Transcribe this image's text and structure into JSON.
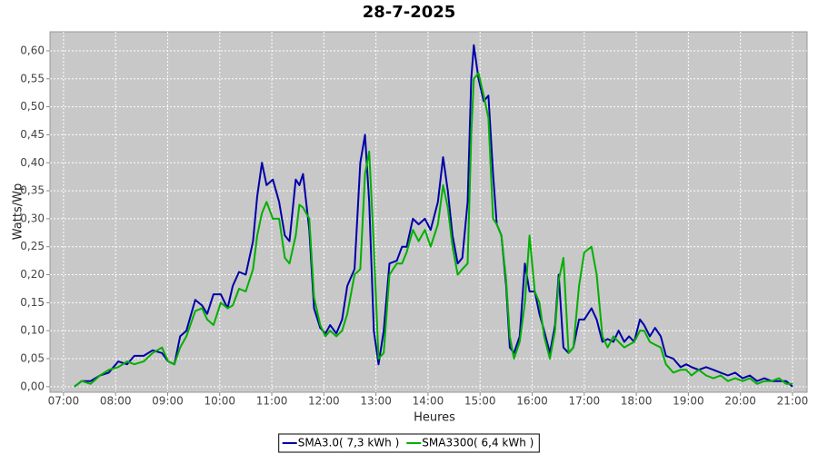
{
  "chart_data": {
    "type": "line",
    "title": "28-7-2025",
    "x_label": "Heures",
    "y_label": "Watts/Wp",
    "x": [
      7.21,
      7.35,
      7.52,
      7.7,
      7.87,
      8.05,
      8.22,
      8.36,
      8.54,
      8.71,
      8.89,
      9.01,
      9.13,
      9.24,
      9.36,
      9.53,
      9.66,
      9.76,
      9.88,
      10.02,
      10.15,
      10.25,
      10.37,
      10.5,
      10.64,
      10.72,
      10.81,
      10.9,
      11.02,
      11.14,
      11.25,
      11.34,
      11.46,
      11.53,
      11.6,
      11.72,
      11.81,
      11.93,
      12.03,
      12.12,
      12.24,
      12.35,
      12.45,
      12.59,
      12.7,
      12.79,
      12.87,
      12.96,
      13.05,
      13.15,
      13.26,
      13.4,
      13.5,
      13.59,
      13.71,
      13.82,
      13.94,
      14.05,
      14.19,
      14.29,
      14.38,
      14.47,
      14.57,
      14.66,
      14.76,
      14.83,
      14.88,
      14.97,
      15.07,
      15.16,
      15.25,
      15.32,
      15.41,
      15.5,
      15.57,
      15.65,
      15.76,
      15.86,
      15.95,
      16.05,
      16.14,
      16.23,
      16.34,
      16.44,
      16.51,
      16.6,
      16.7,
      16.79,
      16.9,
      17.0,
      17.14,
      17.24,
      17.35,
      17.45,
      17.56,
      17.66,
      17.77,
      17.86,
      17.96,
      18.07,
      18.15,
      18.26,
      18.36,
      18.47,
      18.57,
      18.71,
      18.85,
      18.96,
      19.06,
      19.2,
      19.34,
      19.48,
      19.62,
      19.76,
      19.9,
      20.04,
      20.18,
      20.32,
      20.46,
      20.6,
      20.74,
      20.88,
      21.0
    ],
    "series": [
      {
        "name": "SMA3.0( 7,3 kWh )",
        "color": "#0000a8",
        "values": [
          0,
          0.01,
          0.01,
          0.02,
          0.025,
          0.045,
          0.04,
          0.055,
          0.055,
          0.065,
          0.06,
          0.045,
          0.04,
          0.09,
          0.1,
          0.155,
          0.145,
          0.13,
          0.165,
          0.165,
          0.14,
          0.18,
          0.205,
          0.2,
          0.26,
          0.34,
          0.4,
          0.36,
          0.37,
          0.33,
          0.27,
          0.26,
          0.37,
          0.36,
          0.38,
          0.28,
          0.14,
          0.105,
          0.095,
          0.11,
          0.095,
          0.12,
          0.18,
          0.21,
          0.4,
          0.45,
          0.33,
          0.1,
          0.04,
          0.1,
          0.22,
          0.225,
          0.25,
          0.25,
          0.3,
          0.29,
          0.3,
          0.28,
          0.33,
          0.41,
          0.35,
          0.27,
          0.22,
          0.23,
          0.33,
          0.55,
          0.61,
          0.55,
          0.51,
          0.52,
          0.38,
          0.29,
          0.27,
          0.18,
          0.07,
          0.06,
          0.09,
          0.22,
          0.17,
          0.17,
          0.13,
          0.1,
          0.06,
          0.11,
          0.2,
          0.07,
          0.06,
          0.07,
          0.12,
          0.12,
          0.14,
          0.12,
          0.08,
          0.085,
          0.08,
          0.1,
          0.08,
          0.09,
          0.08,
          0.12,
          0.11,
          0.09,
          0.105,
          0.09,
          0.055,
          0.05,
          0.035,
          0.04,
          0.035,
          0.03,
          0.035,
          0.03,
          0.025,
          0.02,
          0.025,
          0.015,
          0.02,
          0.01,
          0.015,
          0.01,
          0.01,
          0.01,
          0
        ]
      },
      {
        "name": "SMA3300( 6,4 kWh )",
        "color": "#00b000",
        "values": [
          0,
          0.01,
          0.005,
          0.02,
          0.03,
          0.035,
          0.045,
          0.04,
          0.045,
          0.06,
          0.07,
          0.045,
          0.04,
          0.07,
          0.09,
          0.135,
          0.14,
          0.12,
          0.11,
          0.15,
          0.14,
          0.145,
          0.175,
          0.17,
          0.21,
          0.27,
          0.31,
          0.33,
          0.3,
          0.3,
          0.23,
          0.22,
          0.27,
          0.325,
          0.32,
          0.3,
          0.16,
          0.11,
          0.09,
          0.1,
          0.09,
          0.1,
          0.13,
          0.2,
          0.21,
          0.38,
          0.42,
          0.25,
          0.05,
          0.06,
          0.2,
          0.22,
          0.22,
          0.24,
          0.28,
          0.26,
          0.28,
          0.25,
          0.29,
          0.36,
          0.32,
          0.25,
          0.2,
          0.21,
          0.22,
          0.45,
          0.55,
          0.56,
          0.52,
          0.48,
          0.3,
          0.29,
          0.27,
          0.19,
          0.09,
          0.05,
          0.08,
          0.15,
          0.27,
          0.17,
          0.15,
          0.09,
          0.05,
          0.1,
          0.19,
          0.23,
          0.06,
          0.07,
          0.18,
          0.24,
          0.25,
          0.2,
          0.09,
          0.07,
          0.09,
          0.08,
          0.07,
          0.075,
          0.08,
          0.1,
          0.1,
          0.08,
          0.075,
          0.07,
          0.04,
          0.025,
          0.03,
          0.03,
          0.02,
          0.03,
          0.02,
          0.015,
          0.02,
          0.01,
          0.015,
          0.01,
          0.015,
          0.005,
          0.01,
          0.01,
          0.015,
          0.005,
          0.005
        ]
      }
    ],
    "xlim": [
      6.74,
      21.28
    ],
    "xticks": [
      {
        "value": 7,
        "label": "07:00"
      },
      {
        "value": 8,
        "label": "08:00"
      },
      {
        "value": 9,
        "label": "09:00"
      },
      {
        "value": 10,
        "label": "10:00"
      },
      {
        "value": 11,
        "label": "11:00"
      },
      {
        "value": 12,
        "label": "12:00"
      },
      {
        "value": 13,
        "label": "13:00"
      },
      {
        "value": 14,
        "label": "14:00"
      },
      {
        "value": 15,
        "label": "15:00"
      },
      {
        "value": 16,
        "label": "16:00"
      },
      {
        "value": 17,
        "label": "17:00"
      },
      {
        "value": 18,
        "label": "18:00"
      },
      {
        "value": 19,
        "label": "19:00"
      },
      {
        "value": 20,
        "label": "20:00"
      },
      {
        "value": 21,
        "label": "21:00"
      }
    ],
    "ylim": [
      -0.01,
      0.634
    ],
    "yticks": [
      {
        "value": 0,
        "label": "0,00"
      },
      {
        "value": 0.05,
        "label": "0,05"
      },
      {
        "value": 0.1,
        "label": "0,10"
      },
      {
        "value": 0.15,
        "label": "0,15"
      },
      {
        "value": 0.2,
        "label": "0,20"
      },
      {
        "value": 0.25,
        "label": "0,25"
      },
      {
        "value": 0.3,
        "label": "0,30"
      },
      {
        "value": 0.35,
        "label": "0,35"
      },
      {
        "value": 0.4,
        "label": "0,40"
      },
      {
        "value": 0.45,
        "label": "0,45"
      },
      {
        "value": 0.5,
        "label": "0,50"
      },
      {
        "value": 0.55,
        "label": "0,55"
      },
      {
        "value": 0.6,
        "label": "0,60"
      }
    ],
    "grid": true,
    "legend": "bottom"
  }
}
